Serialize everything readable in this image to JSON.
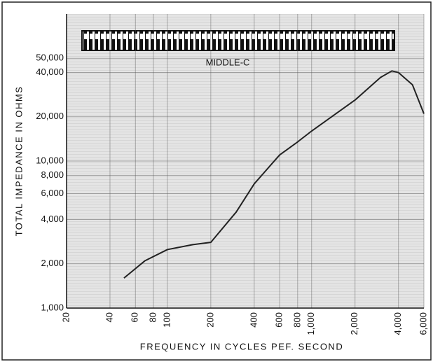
{
  "chart_data": {
    "type": "line",
    "y_label": "TOTAL IMPEDANCE IN OHMS",
    "x_label": "FREQUENCY IN CYCLES PEF. SECOND",
    "annotation": "MIDDLE-C",
    "log_x": true,
    "log_y": true,
    "grid": true,
    "xlim": [
      20,
      6000
    ],
    "ylim": [
      1000,
      100000
    ],
    "xticks": [
      20,
      40,
      60,
      80,
      100,
      200,
      400,
      600,
      800,
      {
        "value": 1000,
        "label": "1,000"
      },
      {
        "value": 2000,
        "label": "2,000"
      },
      {
        "value": 4000,
        "label": "4,000"
      },
      {
        "value": 6000,
        "label": "6,000"
      }
    ],
    "yticks": [
      {
        "value": 1000,
        "label": "1,000"
      },
      {
        "value": 2000,
        "label": "2,000"
      },
      {
        "value": 4000,
        "label": "4,000"
      },
      {
        "value": 6000,
        "label": "6,000"
      },
      {
        "value": 8000,
        "label": "8,000"
      },
      {
        "value": 10000,
        "label": "10,000"
      },
      {
        "value": 20000,
        "label": "20,000"
      },
      {
        "value": 40000,
        "label": "40,000"
      },
      {
        "value": 50000,
        "label": "50,000"
      }
    ],
    "x": [
      50,
      70,
      100,
      150,
      200,
      300,
      400,
      600,
      800,
      1000,
      2000,
      3000,
      3600,
      4000,
      5000,
      6000
    ],
    "series": [
      {
        "color": "#222222",
        "values": [
          1600,
          2100,
          2500,
          2700,
          2800,
          4500,
          7000,
          11000,
          13500,
          16000,
          26000,
          37000,
          41000,
          40000,
          33000,
          21000
        ]
      }
    ]
  }
}
